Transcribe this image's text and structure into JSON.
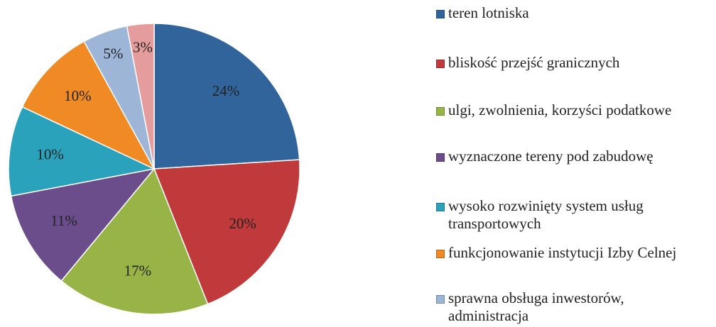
{
  "chart_data": {
    "type": "pie",
    "categories": [
      "teren lotniska",
      "bliskość przejść granicznych",
      "ulgi, zwolnienia, korzyści podatkowe",
      "wyznaczone tereny pod zabudowę",
      "wysoko rozwinięty system usług transportowych",
      "funkcjonowanie instytucji Izby Celnej",
      "sprawna obsługa inwestorów, administracja",
      null
    ],
    "values": [
      24,
      20,
      17,
      11,
      10,
      10,
      5,
      3
    ],
    "value_labels": [
      "24%",
      "20%",
      "17%",
      "11%",
      "10%",
      "10%",
      "5%",
      "3%"
    ],
    "colors": [
      "#31649b",
      "#c0393b",
      "#98b346",
      "#6b4d8c",
      "#2ba2bb",
      "#f08a24",
      "#9db6d8",
      "#e49c9c"
    ],
    "legend": "right"
  }
}
